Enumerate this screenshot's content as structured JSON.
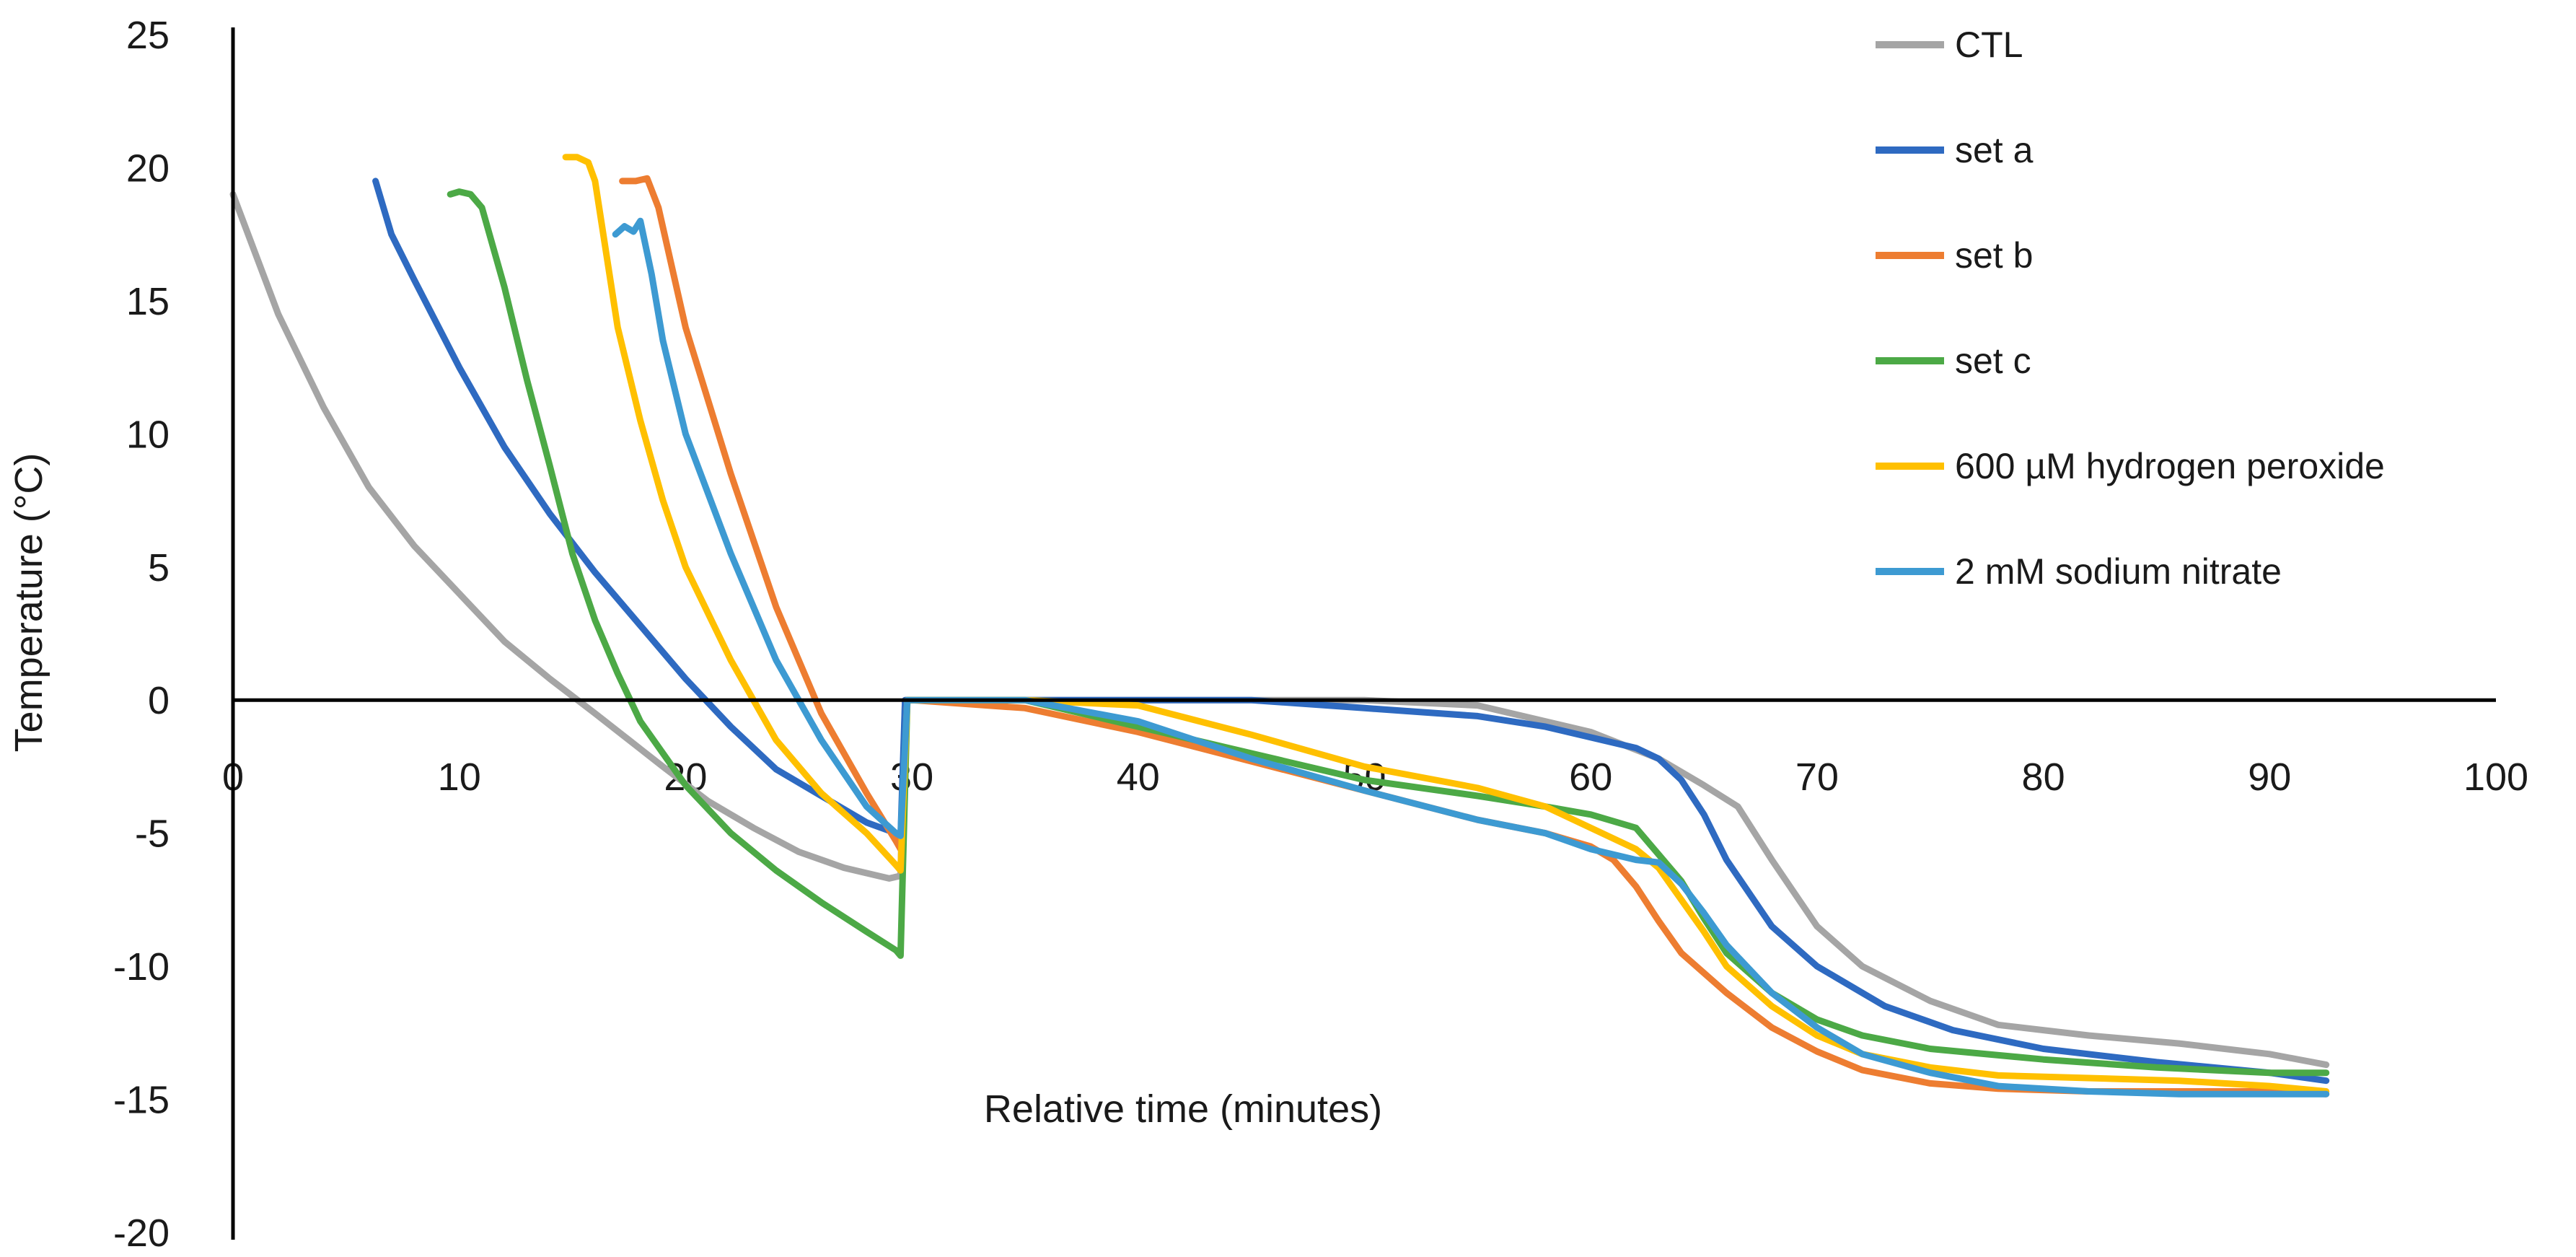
{
  "chart_data": {
    "type": "line",
    "title": "",
    "xlabel": "Relative time (minutes)",
    "ylabel": "Temperature (°C)",
    "xlim": [
      0,
      100
    ],
    "ylim": [
      -20,
      25
    ],
    "x_ticks": [
      0,
      10,
      20,
      30,
      40,
      50,
      60,
      70,
      80,
      90,
      100
    ],
    "y_ticks": [
      25,
      20,
      15,
      10,
      5,
      0,
      -5,
      -10,
      -15,
      -20
    ],
    "grid": false,
    "legend_position": "top-right",
    "series": [
      {
        "name": "CTL",
        "color": "#a5a5a5",
        "x": [
          0,
          2,
          4,
          6,
          8,
          10,
          12,
          14,
          16,
          17.5,
          19,
          21,
          23,
          25,
          27,
          29,
          29.5,
          29.7,
          30,
          35,
          40,
          45,
          50,
          55,
          60,
          63,
          65,
          66.5,
          68,
          70,
          72,
          75,
          78,
          82,
          86,
          90,
          92.5
        ],
        "y": [
          19,
          14.5,
          11,
          8,
          5.8,
          4,
          2.2,
          0.8,
          -0.5,
          -1.5,
          -2.5,
          -3.8,
          -4.8,
          -5.7,
          -6.3,
          -6.7,
          -6.6,
          0,
          0,
          0,
          0,
          0,
          0,
          -0.2,
          -1.2,
          -2.2,
          -3.2,
          -4,
          -6,
          -8.5,
          -10,
          -11.3,
          -12.2,
          -12.6,
          -12.9,
          -13.3,
          -13.7
        ]
      },
      {
        "name": "set a",
        "color": "#2e6ac1",
        "x": [
          6.3,
          7,
          8,
          10,
          12,
          14,
          16,
          18,
          20,
          22,
          24,
          26,
          28,
          29.3,
          29.5,
          29.7,
          30,
          35,
          40,
          45,
          50,
          55,
          58,
          60,
          62,
          63,
          64,
          65,
          66,
          68,
          70,
          73,
          76,
          80,
          85,
          90,
          92.5
        ],
        "y": [
          19.5,
          17.5,
          15.8,
          12.5,
          9.5,
          7,
          4.8,
          2.8,
          0.8,
          -1,
          -2.6,
          -3.6,
          -4.6,
          -5,
          -5.2,
          0,
          0,
          0,
          0,
          0,
          -0.3,
          -0.6,
          -1,
          -1.4,
          -1.8,
          -2.2,
          -3,
          -4.3,
          -6,
          -8.5,
          -10,
          -11.5,
          -12.4,
          -13.1,
          -13.6,
          -14,
          -14.3
        ]
      },
      {
        "name": "set b",
        "color": "#ed7d31",
        "x": [
          17.2,
          17.8,
          18.3,
          18.8,
          20,
          22,
          24,
          26,
          28,
          29.3,
          29.5,
          29.8,
          30,
          35,
          40,
          45,
          50,
          55,
          58,
          60,
          61,
          62,
          63,
          64,
          66,
          68,
          70,
          72,
          75,
          78,
          82,
          86,
          90,
          92.5
        ],
        "y": [
          19.5,
          19.5,
          19.6,
          18.5,
          14,
          8.5,
          3.5,
          -0.5,
          -3.5,
          -5.3,
          -5.6,
          0,
          0,
          -0.3,
          -1.2,
          -2.3,
          -3.4,
          -4.5,
          -5,
          -5.5,
          -6,
          -7,
          -8.3,
          -9.5,
          -11,
          -12.3,
          -13.2,
          -13.9,
          -14.4,
          -14.6,
          -14.7,
          -14.7,
          -14.7,
          -14.8
        ]
      },
      {
        "name": "set c",
        "color": "#4ca946",
        "x": [
          9.6,
          10,
          10.5,
          11,
          12,
          13,
          14,
          15,
          16,
          17,
          18,
          20,
          22,
          24,
          26,
          28,
          29.3,
          29.5,
          29.8,
          30,
          35,
          40,
          45,
          50,
          55,
          58,
          60,
          62,
          63,
          64,
          65,
          66,
          68,
          70,
          72,
          75,
          80,
          85,
          90,
          92.5
        ],
        "y": [
          19,
          19.1,
          19,
          18.5,
          15.5,
          12,
          8.8,
          5.5,
          3,
          1,
          -0.8,
          -3.2,
          -5,
          -6.4,
          -7.6,
          -8.7,
          -9.4,
          -9.6,
          0,
          0,
          0,
          -1,
          -2,
          -3,
          -3.6,
          -4,
          -4.3,
          -4.8,
          -5.8,
          -6.8,
          -8.2,
          -9.5,
          -11,
          -12,
          -12.6,
          -13.1,
          -13.5,
          -13.8,
          -14,
          -14
        ]
      },
      {
        "name": "600 µM hydrogen peroxide",
        "color": "#ffc000",
        "x": [
          14.7,
          15.2,
          15.7,
          16,
          17,
          18,
          19,
          20,
          22,
          24,
          26,
          28,
          29.3,
          29.5,
          29.8,
          30,
          35,
          40,
          45,
          50,
          55,
          58,
          60,
          62,
          63,
          64,
          65,
          66,
          68,
          70,
          72,
          75,
          78,
          82,
          86,
          90,
          92.5
        ],
        "y": [
          20.4,
          20.4,
          20.2,
          19.5,
          14,
          10.5,
          7.5,
          5,
          1.5,
          -1.5,
          -3.5,
          -5,
          -6.2,
          -6.4,
          0,
          0,
          0,
          -0.2,
          -1.3,
          -2.5,
          -3.3,
          -4,
          -4.8,
          -5.6,
          -6.3,
          -7.5,
          -8.7,
          -10,
          -11.5,
          -12.6,
          -13.3,
          -13.8,
          -14.1,
          -14.2,
          -14.3,
          -14.5,
          -14.7
        ]
      },
      {
        "name": "2 mM sodium nitrate",
        "color": "#3d9ad2",
        "x": [
          16.9,
          17.3,
          17.7,
          18,
          18.5,
          19,
          20,
          22,
          24,
          26,
          28,
          29.3,
          29.5,
          29.8,
          30,
          35,
          40,
          45,
          50,
          55,
          58,
          60,
          62,
          63,
          64,
          65,
          66,
          68,
          70,
          72,
          75,
          78,
          82,
          86,
          90,
          92.5
        ],
        "y": [
          17.5,
          17.8,
          17.6,
          18,
          16,
          13.5,
          10,
          5.5,
          1.5,
          -1.5,
          -4,
          -5,
          -5.1,
          0,
          0,
          0,
          -0.8,
          -2.2,
          -3.4,
          -4.5,
          -5,
          -5.6,
          -6,
          -6.1,
          -6.9,
          -8,
          -9.2,
          -11,
          -12.3,
          -13.3,
          -14,
          -14.5,
          -14.7,
          -14.8,
          -14.8,
          -14.8
        ]
      }
    ]
  }
}
